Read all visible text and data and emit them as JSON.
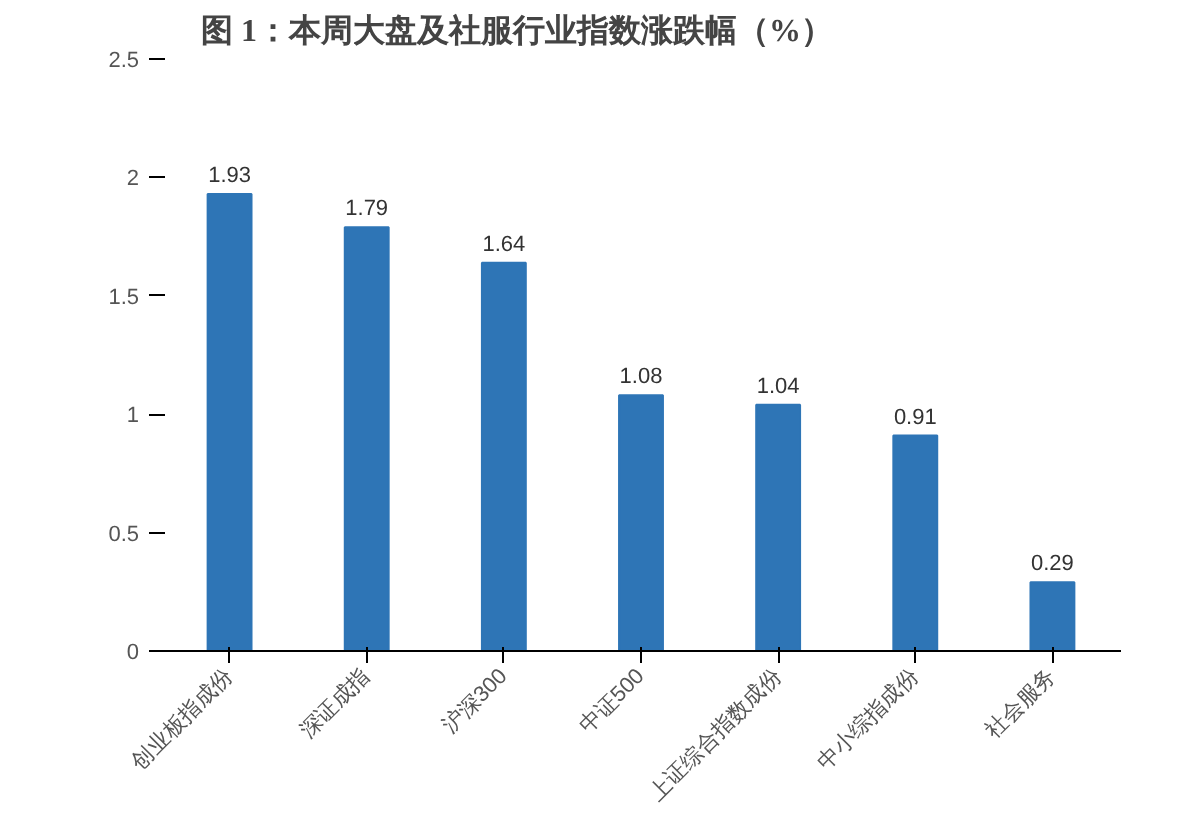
{
  "chart_data": {
    "type": "bar",
    "title": "图 1：本周大盘及社服行业指数涨跌幅（%）",
    "categories": [
      "创业板指成份",
      "深证成指",
      "沪深300",
      "中证500",
      "上证综合指数成份",
      "中小综指成份",
      "社会服务"
    ],
    "values": [
      1.93,
      1.79,
      1.64,
      1.08,
      1.04,
      0.91,
      0.29
    ],
    "color": "#2e75b6",
    "ylim": [
      0,
      2.5
    ],
    "yticks": [
      0,
      0.5,
      1,
      1.5,
      2,
      2.5
    ],
    "grid": false,
    "data_labels": true
  }
}
